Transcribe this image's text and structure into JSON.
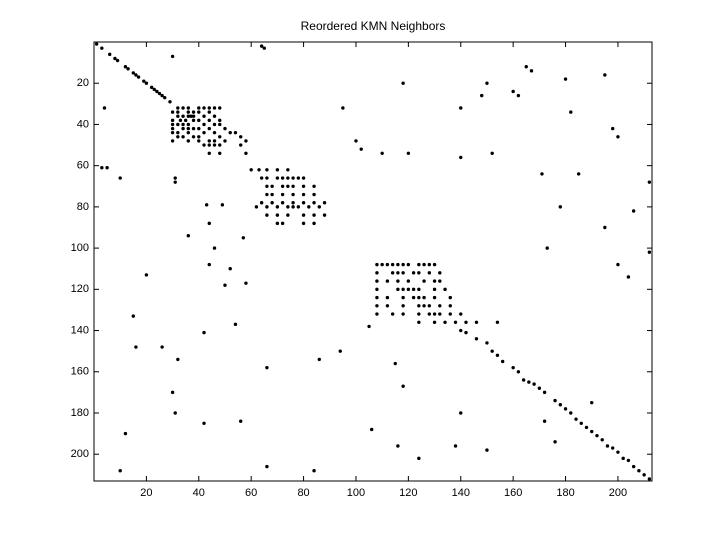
{
  "chart_data": {
    "type": "spy",
    "title": "Reordered KMN Neighbors",
    "color": "#000000",
    "xlim": [
      0,
      213
    ],
    "ylim": [
      0,
      213
    ],
    "y_reversed": true,
    "xticks": [
      20,
      40,
      60,
      80,
      100,
      120,
      140,
      160,
      180,
      200
    ],
    "yticks": [
      20,
      40,
      60,
      80,
      100,
      120,
      140,
      160,
      180,
      200
    ],
    "x": [
      1,
      3,
      6,
      8,
      9,
      12,
      13,
      15,
      16,
      17,
      19,
      20,
      22,
      23,
      24,
      25,
      26,
      27,
      29,
      4,
      30,
      64,
      65,
      3,
      5,
      10,
      31,
      31,
      32,
      34,
      36,
      40,
      42,
      44,
      46,
      48,
      30,
      32,
      36,
      38,
      40,
      44,
      32,
      34,
      36,
      37,
      38,
      42,
      46,
      30,
      33,
      35,
      38,
      40,
      44,
      48,
      30,
      32,
      34,
      36,
      42,
      46,
      48,
      30,
      34,
      36,
      38,
      40,
      44,
      50,
      30,
      32,
      36,
      42,
      46,
      52,
      54,
      32,
      34,
      38,
      40,
      48,
      56,
      30,
      36,
      40,
      44,
      46,
      50,
      58,
      42,
      44,
      46,
      48,
      56,
      44,
      48,
      58,
      60,
      63,
      66,
      70,
      74,
      64,
      66,
      70,
      72,
      74,
      76,
      78,
      80,
      66,
      68,
      72,
      74,
      76,
      80,
      84,
      66,
      68,
      72,
      76,
      80,
      84,
      64,
      68,
      72,
      76,
      80,
      84,
      88,
      62,
      66,
      70,
      74,
      76,
      78,
      82,
      86,
      66,
      70,
      74,
      80,
      84,
      88,
      70,
      72,
      80,
      84,
      108,
      110,
      112,
      114,
      116,
      118,
      120,
      124,
      126,
      128,
      130,
      108,
      114,
      116,
      118,
      122,
      124,
      128,
      132,
      108,
      112,
      116,
      120,
      126,
      130,
      132,
      108,
      116,
      118,
      120,
      122,
      124,
      130,
      134,
      108,
      112,
      118,
      122,
      124,
      126,
      130,
      136,
      108,
      112,
      118,
      124,
      126,
      128,
      132,
      136,
      108,
      114,
      118,
      124,
      128,
      130,
      132,
      136,
      140,
      124,
      130,
      134,
      138,
      142,
      146,
      154,
      140,
      142,
      146,
      150,
      152,
      154,
      156,
      160,
      162,
      164,
      166,
      168,
      170,
      172,
      176,
      178,
      180,
      182,
      184,
      186,
      188,
      190,
      192,
      194,
      196,
      198,
      200,
      202,
      204,
      206,
      208,
      210,
      212,
      165,
      167,
      180,
      195,
      160,
      150,
      148,
      140,
      162,
      182,
      198,
      200,
      185,
      206,
      212,
      195,
      173,
      200,
      204,
      212,
      100,
      95,
      118,
      102,
      110,
      120,
      140,
      152,
      171,
      178,
      20,
      15,
      16,
      26,
      32,
      42,
      54,
      52,
      58,
      50,
      36,
      46,
      57,
      44,
      43,
      49,
      44,
      30,
      31,
      42,
      66,
      56,
      86,
      94,
      105,
      115,
      118,
      106,
      116,
      138,
      150,
      172,
      190,
      10,
      66,
      84,
      124,
      140,
      176,
      12
    ],
    "values": [
      1,
      3,
      6,
      8,
      9,
      12,
      13,
      15,
      16,
      17,
      19,
      20,
      22,
      23,
      24,
      25,
      26,
      27,
      29,
      32,
      7,
      2,
      3,
      61,
      61,
      66,
      66,
      68,
      32,
      32,
      32,
      32,
      32,
      32,
      32,
      32,
      34,
      34,
      34,
      34,
      34,
      34,
      36,
      36,
      36,
      36,
      36,
      36,
      36,
      38,
      38,
      38,
      38,
      38,
      38,
      38,
      40,
      40,
      40,
      40,
      40,
      40,
      40,
      42,
      42,
      42,
      42,
      42,
      42,
      42,
      44,
      44,
      44,
      44,
      44,
      44,
      44,
      46,
      46,
      46,
      46,
      46,
      46,
      48,
      48,
      48,
      48,
      48,
      48,
      48,
      50,
      50,
      50,
      50,
      50,
      54,
      54,
      54,
      62,
      62,
      62,
      62,
      62,
      66,
      66,
      66,
      66,
      66,
      66,
      66,
      66,
      70,
      70,
      70,
      70,
      70,
      70,
      70,
      74,
      74,
      74,
      74,
      74,
      74,
      78,
      78,
      78,
      78,
      78,
      78,
      78,
      80,
      80,
      80,
      80,
      80,
      80,
      80,
      80,
      84,
      84,
      84,
      84,
      84,
      84,
      88,
      88,
      88,
      88,
      108,
      108,
      108,
      108,
      108,
      108,
      108,
      108,
      108,
      108,
      108,
      112,
      112,
      112,
      112,
      112,
      112,
      112,
      112,
      116,
      116,
      116,
      116,
      116,
      116,
      116,
      120,
      120,
      120,
      120,
      120,
      120,
      120,
      120,
      124,
      124,
      124,
      124,
      124,
      124,
      124,
      124,
      128,
      128,
      128,
      128,
      128,
      128,
      128,
      128,
      132,
      132,
      132,
      132,
      132,
      132,
      132,
      132,
      132,
      136,
      136,
      136,
      136,
      136,
      136,
      136,
      140,
      141,
      144,
      146,
      150,
      152,
      155,
      158,
      160,
      164,
      165,
      166,
      168,
      170,
      174,
      176,
      178,
      180,
      183,
      185,
      187,
      189,
      191,
      193,
      196,
      197,
      199,
      202,
      203,
      206,
      208,
      210,
      212,
      12,
      14,
      18,
      16,
      24,
      20,
      26,
      32,
      26,
      34,
      42,
      46,
      64,
      82,
      68,
      90,
      100,
      108,
      114,
      102,
      48,
      32,
      20,
      52,
      54,
      54,
      56,
      54,
      64,
      80,
      113,
      133,
      148,
      148,
      154,
      141,
      137,
      110,
      117,
      118,
      94,
      100,
      95,
      108,
      79,
      79,
      88,
      170,
      180,
      185,
      158,
      184,
      154,
      150,
      138,
      156,
      167,
      188,
      196,
      196,
      198,
      184,
      175,
      208,
      206,
      208,
      202,
      180,
      194,
      190
    ]
  }
}
